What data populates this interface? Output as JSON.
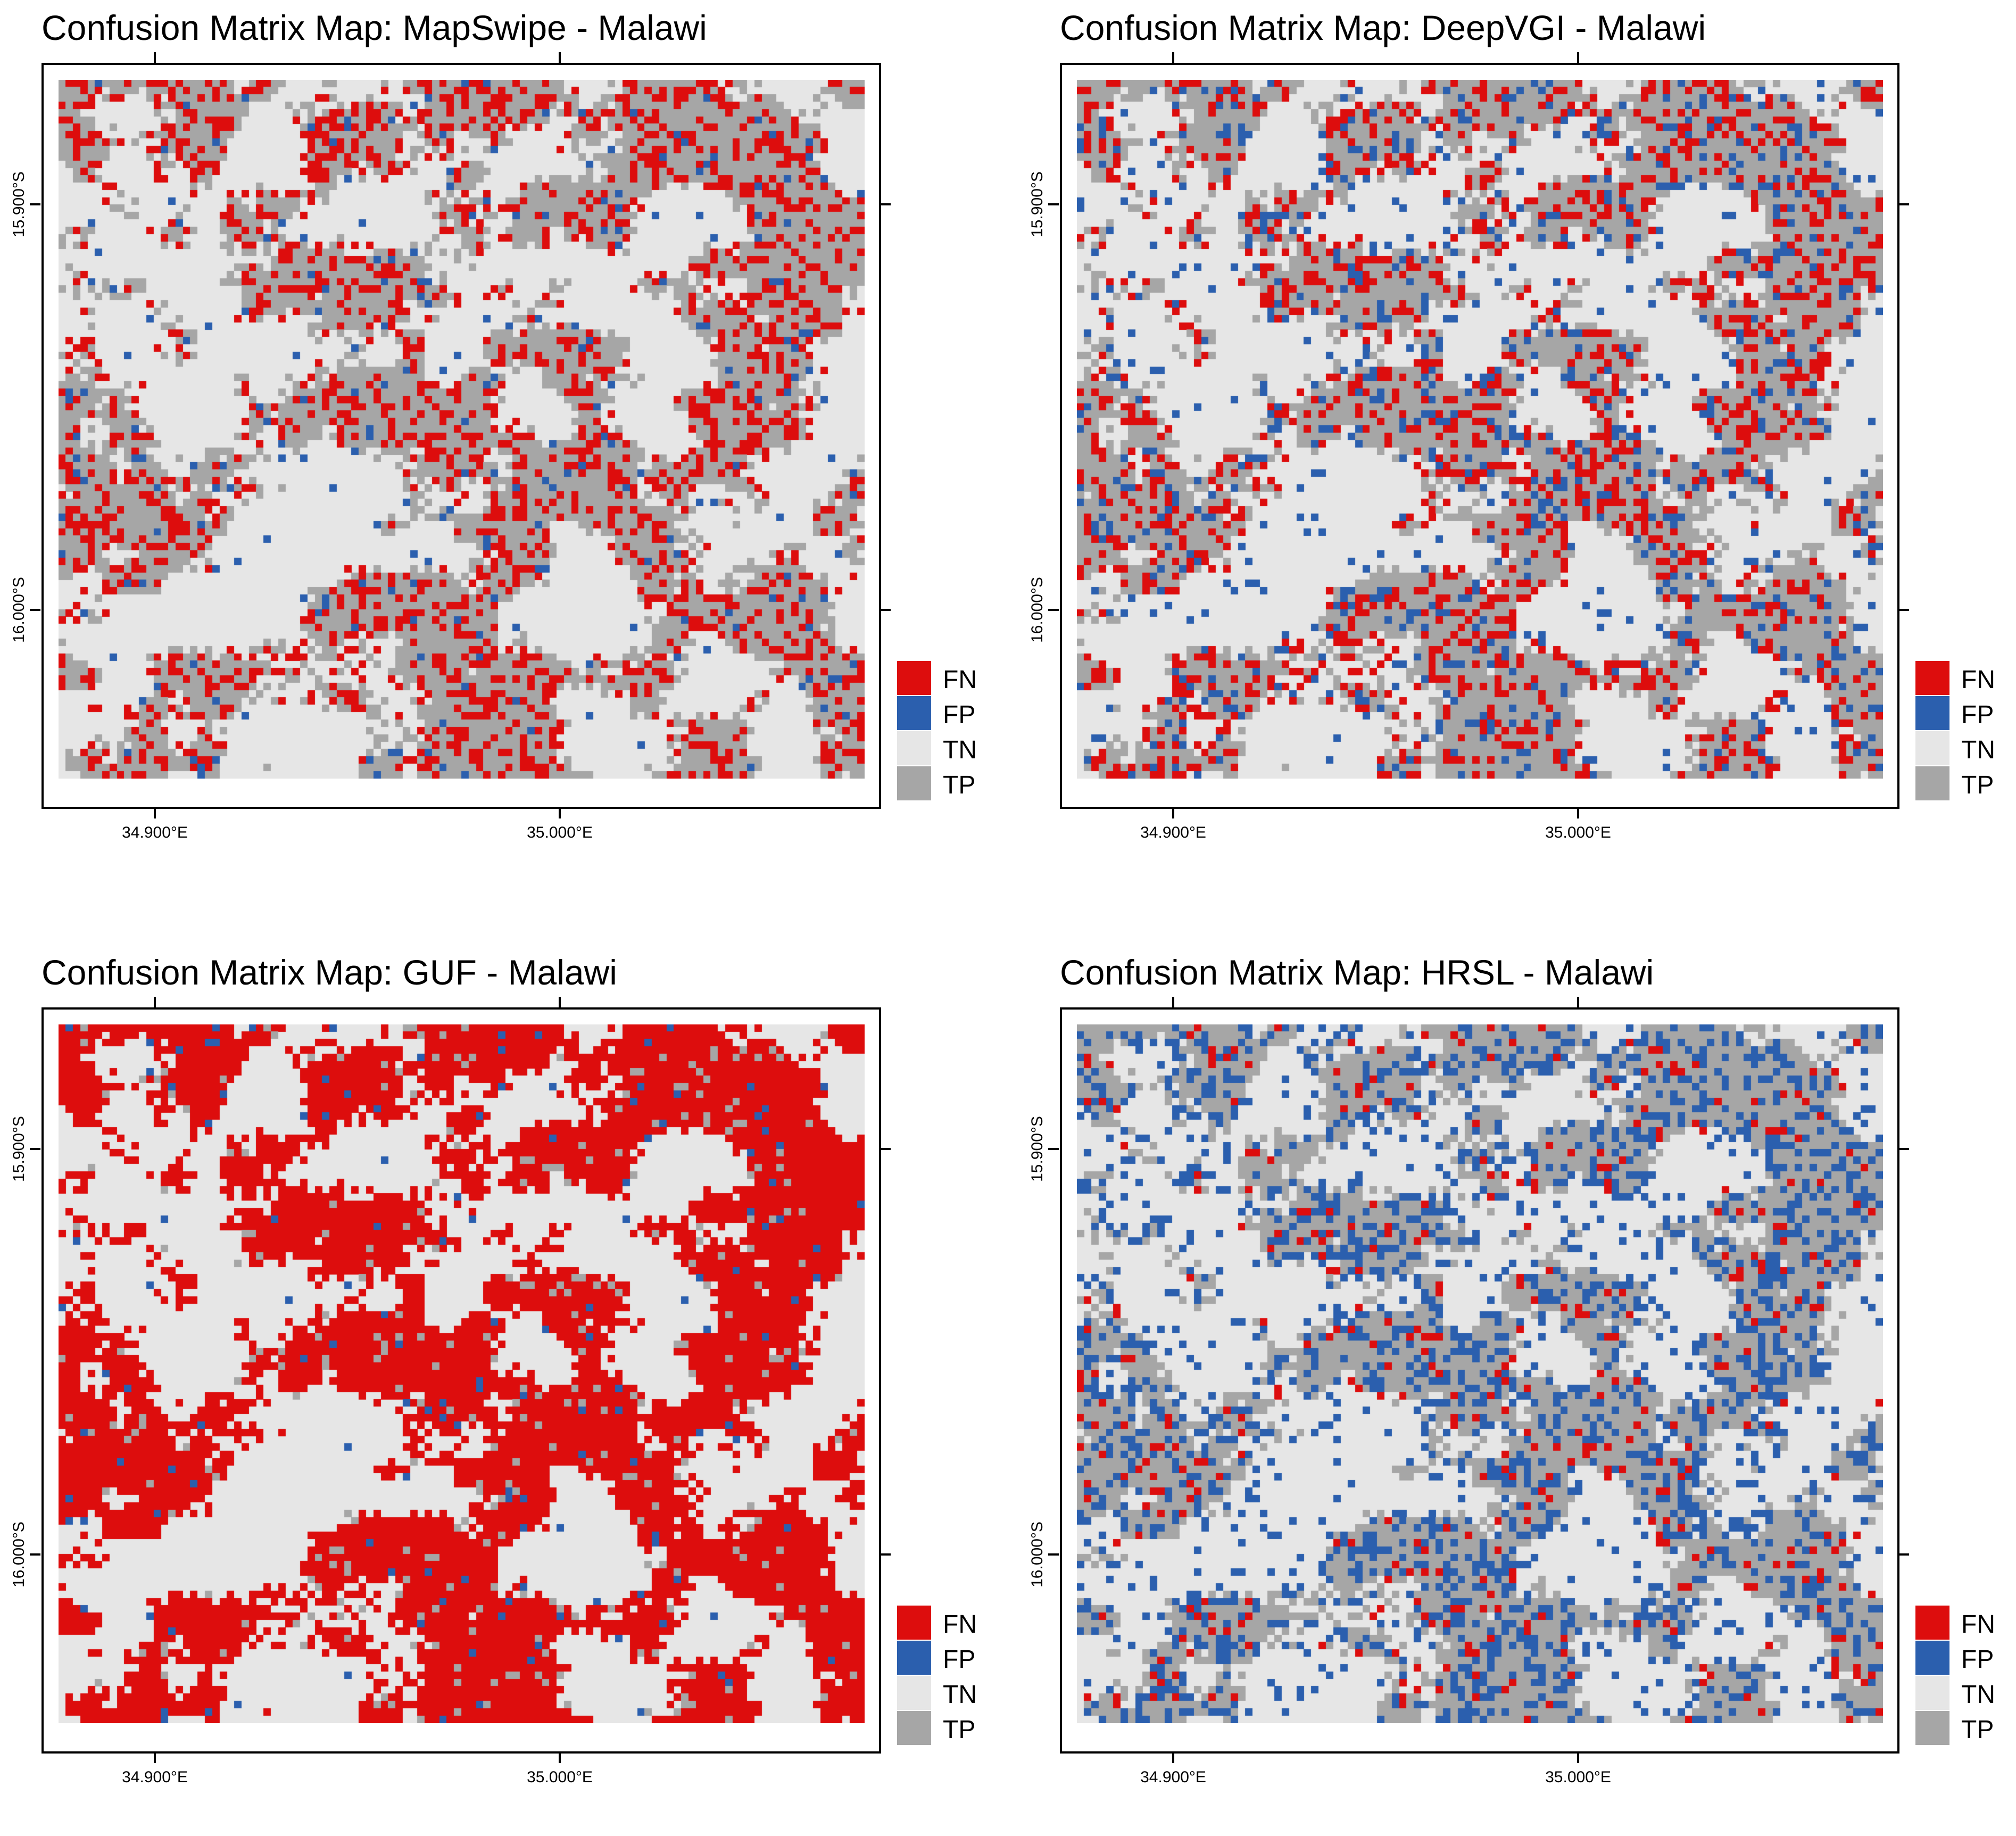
{
  "colors": {
    "FN": "#dd0d0d",
    "FP": "#2b5fae",
    "TN": "#e6e6e6",
    "TP": "#a6a6a6"
  },
  "legend": {
    "items": [
      {
        "label": "FN",
        "color": "#dd0d0d"
      },
      {
        "label": "FP",
        "color": "#2b5fae"
      },
      {
        "label": "TN",
        "color": "#e6e6e6"
      },
      {
        "label": "TP",
        "color": "#a6a6a6"
      }
    ]
  },
  "axes": {
    "y_labels": [
      "15.900°S",
      "16.000°S"
    ],
    "x_labels": [
      "34.900°E",
      "35.000°E"
    ]
  },
  "panels": [
    {
      "title": "Confusion Matrix Map: MapSwipe - Malawi",
      "mix": {
        "FN": 0.32,
        "FP": 0.04,
        "TP": 0.64
      }
    },
    {
      "title": "Confusion Matrix Map: DeepVGI - Malawi",
      "mix": {
        "FN": 0.25,
        "FP": 0.12,
        "TP": 0.63
      }
    },
    {
      "title": "Confusion Matrix Map: GUF - Malawi",
      "mix": {
        "FN": 0.92,
        "FP": 0.02,
        "TP": 0.06
      }
    },
    {
      "title": "Confusion Matrix Map: HRSL - Malawi",
      "mix": {
        "FN": 0.08,
        "FP": 0.28,
        "TP": 0.64
      }
    }
  ]
}
